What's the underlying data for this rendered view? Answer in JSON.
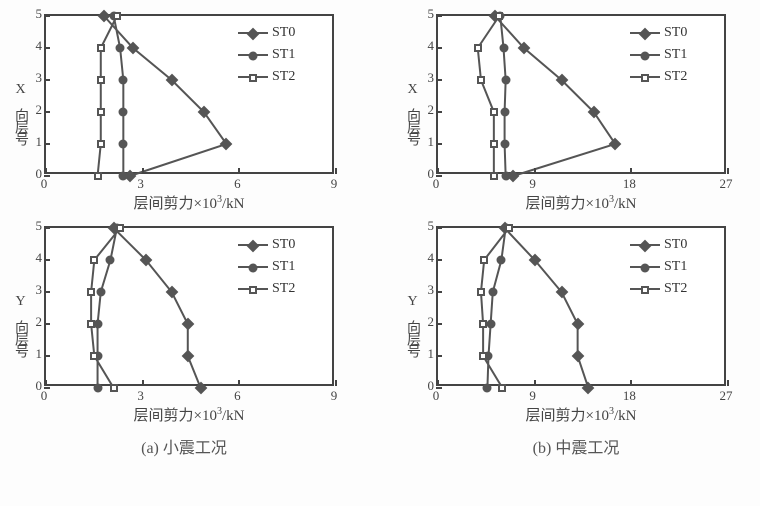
{
  "figure": {
    "background_color": "#fdfdfd",
    "line_color": "#555555",
    "border_color": "#444444",
    "tick_fontsize": 13,
    "label_fontsize": 15,
    "caption_fontsize": 16,
    "marker_size": 9,
    "line_width": 2
  },
  "legend_labels": {
    "st0": "ST0",
    "st1": "ST1",
    "st2": "ST2"
  },
  "series_styles": {
    "st0": {
      "marker": "diamond",
      "fill": "#555555"
    },
    "st1": {
      "marker": "circle",
      "fill": "#555555"
    },
    "st2": {
      "marker": "square",
      "fill": "#ffffff",
      "stroke": "#555555"
    }
  },
  "panels": {
    "a_top": {
      "type": "line",
      "ylabel": "X 向层号",
      "xlabel": "层间剪力×10³/kN",
      "xlim": [
        0,
        9
      ],
      "xticks": [
        0,
        3,
        6,
        9
      ],
      "ylim": [
        0,
        5
      ],
      "yticks": [
        0,
        1,
        2,
        3,
        4,
        5
      ],
      "series": {
        "st0": {
          "x": [
            2.6,
            5.6,
            4.9,
            3.9,
            2.7,
            1.8
          ],
          "y": [
            0,
            1,
            2,
            3,
            4,
            5
          ]
        },
        "st1": {
          "x": [
            2.4,
            2.4,
            2.4,
            2.4,
            2.3,
            2.1
          ],
          "y": [
            0,
            1,
            2,
            3,
            4,
            5
          ]
        },
        "st2": {
          "x": [
            1.6,
            1.7,
            1.7,
            1.7,
            1.7,
            2.2
          ],
          "y": [
            0,
            1,
            2,
            3,
            4,
            5
          ]
        }
      }
    },
    "a_bottom": {
      "type": "line",
      "ylabel": "Y 向层号",
      "xlabel": "层间剪力×10³/kN",
      "xlim": [
        0,
        9
      ],
      "xticks": [
        0,
        3,
        6,
        9
      ],
      "ylim": [
        0,
        5
      ],
      "yticks": [
        0,
        1,
        2,
        3,
        4,
        5
      ],
      "series": {
        "st0": {
          "x": [
            4.8,
            4.4,
            4.4,
            3.9,
            3.1,
            2.1
          ],
          "y": [
            0,
            1,
            2,
            3,
            4,
            5
          ]
        },
        "st1": {
          "x": [
            1.6,
            1.6,
            1.6,
            1.7,
            2.0,
            2.2
          ],
          "y": [
            0,
            1,
            2,
            3,
            4,
            5
          ]
        },
        "st2": {
          "x": [
            2.1,
            1.5,
            1.4,
            1.4,
            1.5,
            2.3
          ],
          "y": [
            0,
            1,
            2,
            3,
            4,
            5
          ]
        }
      }
    },
    "b_top": {
      "type": "line",
      "ylabel": "X 向层号",
      "xlabel": "层间剪力×10³/kN",
      "xlim": [
        0,
        27
      ],
      "xticks": [
        0,
        9,
        18,
        27
      ],
      "ylim": [
        0,
        5
      ],
      "yticks": [
        0,
        1,
        2,
        3,
        4,
        5
      ],
      "series": {
        "st0": {
          "x": [
            7.0,
            16.5,
            14.5,
            11.5,
            8.0,
            5.3
          ],
          "y": [
            0,
            1,
            2,
            3,
            4,
            5
          ]
        },
        "st1": {
          "x": [
            6.3,
            6.2,
            6.2,
            6.3,
            6.1,
            5.8
          ],
          "y": [
            0,
            1,
            2,
            3,
            4,
            5
          ]
        },
        "st2": {
          "x": [
            5.2,
            5.2,
            5.2,
            4.0,
            3.7,
            5.7
          ],
          "y": [
            0,
            1,
            2,
            3,
            4,
            5
          ]
        }
      }
    },
    "b_bottom": {
      "type": "line",
      "ylabel": "Y 向层号",
      "xlabel": "层间剪力×10³/kN",
      "xlim": [
        0,
        27
      ],
      "xticks": [
        0,
        9,
        18,
        27
      ],
      "ylim": [
        0,
        5
      ],
      "yticks": [
        0,
        1,
        2,
        3,
        4,
        5
      ],
      "series": {
        "st0": {
          "x": [
            14.0,
            13.0,
            13.0,
            11.5,
            9.0,
            6.2
          ],
          "y": [
            0,
            1,
            2,
            3,
            4,
            5
          ]
        },
        "st1": {
          "x": [
            4.6,
            4.7,
            4.9,
            5.1,
            5.9,
            6.3
          ],
          "y": [
            0,
            1,
            2,
            3,
            4,
            5
          ]
        },
        "st2": {
          "x": [
            6.0,
            4.2,
            4.2,
            4.0,
            4.3,
            6.6
          ],
          "y": [
            0,
            1,
            2,
            3,
            4,
            5
          ]
        }
      }
    }
  },
  "captions": {
    "a": "(a)  小震工况",
    "b": "(b)  中震工况"
  }
}
